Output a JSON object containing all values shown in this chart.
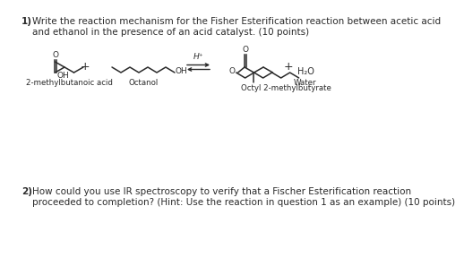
{
  "background_color": "#ffffff",
  "question1_number": "1)",
  "question1_line1": "Write the reaction mechanism for the Fisher Esterification reaction between acetic acid",
  "question1_line2": "and ethanol in the presence of an acid catalyst. (10 points)",
  "question2_number": "2)",
  "question2_line1": "How could you use IR spectroscopy to verify that a Fischer Esterification reaction",
  "question2_line2": "proceeded to completion? (Hint: Use the reaction in question 1 as an example) (10 points)",
  "label1": "2-methylbutanoic acid",
  "label2": "Octanol",
  "label3": "Octyl 2-methylbutyrate",
  "label4": "Water",
  "catalyst": "H⁺",
  "water": "H₂O",
  "text_color": "#2a2a2a",
  "bond_color": "#2a2a2a",
  "font_size_body": 7.5,
  "font_size_label": 6.2,
  "font_size_atom": 6.5
}
